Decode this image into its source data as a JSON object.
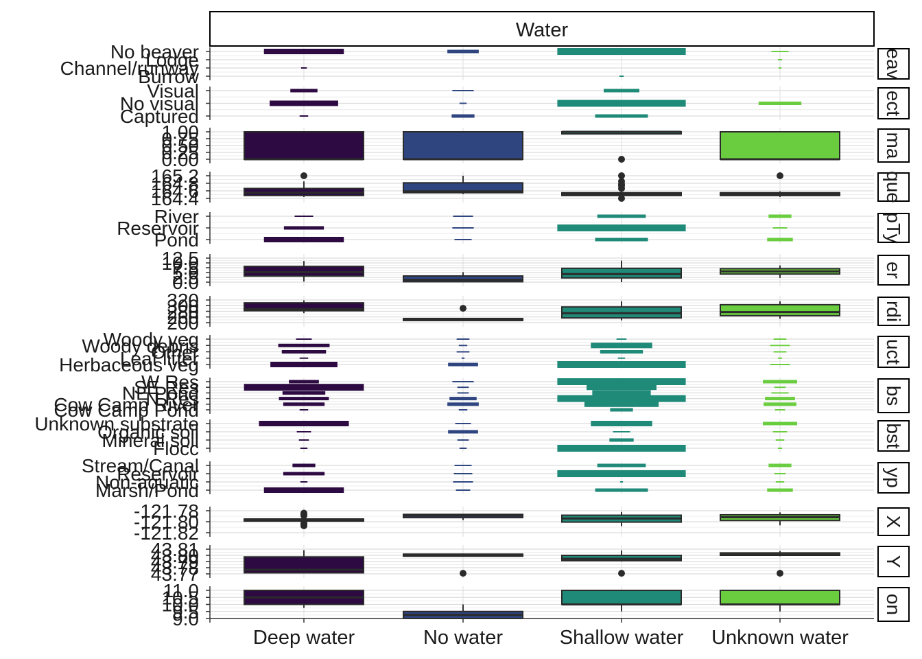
{
  "chart_data": {
    "type": "boxplot-facets",
    "title": "",
    "facet_title": "Water",
    "categories": [
      "Deep water",
      "No water",
      "Shallow water",
      "Unknown water"
    ],
    "category_colors": [
      "#2d0a42",
      "#2f4580",
      "#1f8a78",
      "#6acd3f"
    ],
    "panels": [
      {
        "strip": "eav",
        "kind": "factor",
        "levels": [
          "No beaver",
          "Lodge",
          "Channel/runway",
          "Burrow"
        ],
        "widths": [
          [
            0.56,
            0,
            0.04,
            0
          ],
          [
            0.22,
            0,
            0,
            0
          ],
          [
            0.9,
            0,
            0,
            0.03
          ],
          [
            0.12,
            0.03,
            0.02,
            0
          ]
        ]
      },
      {
        "strip": "ect",
        "kind": "factor",
        "levels": [
          "Visual",
          "No visual",
          "Captured"
        ],
        "widths": [
          [
            0.19,
            0.48,
            0.06
          ],
          [
            0.15,
            0.05,
            0.16
          ],
          [
            0.25,
            0.9,
            0.37
          ],
          [
            0,
            0.3,
            0
          ]
        ]
      },
      {
        "strip": "ma",
        "kind": "numeric",
        "ticks": [
          "1.00",
          "0.75",
          "0.50",
          "0.25",
          "0.00"
        ],
        "ylim": [
          0,
          1
        ],
        "boxes": [
          {
            "q1": 0,
            "median": 0,
            "q3": 1,
            "lo": 0,
            "hi": 1,
            "out": []
          },
          {
            "q1": 0,
            "median": 0,
            "q3": 1,
            "lo": 0,
            "hi": 1,
            "out": []
          },
          {
            "q1": 1,
            "median": 1,
            "q3": 1,
            "lo": 1,
            "hi": 1,
            "out": [
              0
            ]
          },
          {
            "q1": 0,
            "median": 0,
            "q3": 1,
            "lo": 0,
            "hi": 1,
            "out": []
          }
        ]
      },
      {
        "strip": "que",
        "kind": "numeric",
        "ticks": [
          "165.2",
          "164.8",
          "164.6",
          "164.4"
        ],
        "ylim": [
          164.4,
          165.2
        ],
        "boxes": [
          {
            "q1": 164.5,
            "median": 164.6,
            "q3": 164.75,
            "lo": 164.45,
            "hi": 165.0,
            "out": [
              165.2
            ]
          },
          {
            "q1": 164.6,
            "median": 164.65,
            "q3": 164.95,
            "lo": 164.55,
            "hi": 165.2,
            "out": []
          },
          {
            "q1": 164.5,
            "median": 164.55,
            "q3": 164.6,
            "lo": 164.4,
            "hi": 164.7,
            "out": [
              164.4,
              164.75,
              164.85,
              164.9,
              165.0,
              165.2
            ]
          },
          {
            "q1": 164.5,
            "median": 164.55,
            "q3": 164.6,
            "lo": 164.45,
            "hi": 164.65,
            "out": [
              165.2
            ]
          }
        ]
      },
      {
        "strip": "pTy",
        "kind": "factor",
        "levels": [
          "River",
          "Reservoir",
          "Pond"
        ],
        "widths": [
          [
            0.13,
            0.28,
            0.56
          ],
          [
            0.14,
            0.15,
            0.12
          ],
          [
            0.34,
            0.9,
            0.37
          ],
          [
            0.16,
            0.1,
            0.18
          ]
        ]
      },
      {
        "strip": "er",
        "kind": "numeric",
        "ticks": [
          "12.5",
          "10.0",
          "7.5",
          "5.0",
          "2.5",
          "0.0"
        ],
        "ylim": [
          0,
          12.5
        ],
        "boxes": [
          {
            "q1": 3.2,
            "median": 5.2,
            "q3": 8.2,
            "lo": 0.3,
            "hi": 11.0,
            "out": []
          },
          {
            "q1": 0.2,
            "median": 1.2,
            "q3": 3.2,
            "lo": 0.0,
            "hi": 5.2,
            "out": []
          },
          {
            "q1": 2.2,
            "median": 4.2,
            "q3": 7.2,
            "lo": 0.0,
            "hi": 11.2,
            "out": []
          },
          {
            "q1": 4.2,
            "median": 5.6,
            "q3": 7.0,
            "lo": 2.2,
            "hi": 8.7,
            "out": []
          }
        ]
      },
      {
        "strip": "rdi",
        "kind": "numeric",
        "ticks": [
          "320",
          "300",
          "280",
          "260",
          "200"
        ],
        "ylim": [
          200,
          320
        ],
        "boxes": [
          {
            "q1": 263,
            "median": 272,
            "q3": 305,
            "lo": 250,
            "hi": 318,
            "out": []
          },
          {
            "q1": 213,
            "median": 216,
            "q3": 222,
            "lo": 210,
            "hi": 225,
            "out": [
              276
            ]
          },
          {
            "q1": 225,
            "median": 250,
            "q3": 283,
            "lo": 212,
            "hi": 313,
            "out": []
          },
          {
            "q1": 237,
            "median": 256,
            "q3": 295,
            "lo": 220,
            "hi": 313,
            "out": []
          }
        ]
      },
      {
        "strip": "uct",
        "kind": "factor",
        "levels": [
          "Woody veg",
          "Woody debris",
          "Other",
          "Leaf litter",
          "Herbaceous veg"
        ],
        "widths": [
          [
            0.11,
            0.36,
            0.31,
            0.06,
            0.47
          ],
          [
            0.09,
            0.06,
            0.09,
            0.02,
            0.21
          ],
          [
            0.07,
            0.43,
            0.3,
            0.05,
            0.9
          ],
          [
            0.09,
            0.14,
            0.09,
            0.03,
            0.14
          ]
        ]
      },
      {
        "strip": "bs",
        "kind": "factor",
        "levels": [
          "W Res",
          "SE Res",
          "NE Pond",
          "N Res",
          "Cow Camp River",
          "Cow Camp Pond"
        ],
        "widths": [
          [
            0.21,
            0.84,
            0.3,
            0.35,
            0.29,
            0.06
          ],
          [
            0.15,
            0.08,
            0.08,
            0.19,
            0.22,
            0.06
          ],
          [
            0.9,
            0.49,
            0.41,
            0.9,
            0.52,
            0.16
          ],
          [
            0.24,
            0.08,
            0.12,
            0.21,
            0.23,
            0.07
          ]
        ]
      },
      {
        "strip": "bst",
        "kind": "factor",
        "levels": [
          "Unknown substrate",
          "Organic soil",
          "Mineral soil",
          "Flocc"
        ],
        "widths": [
          [
            0.63,
            0.1,
            0.07,
            0.05
          ],
          [
            0.11,
            0.21,
            0.08,
            0.05
          ],
          [
            0.43,
            0.12,
            0.17,
            0.9
          ],
          [
            0.24,
            0.1,
            0.06,
            0.03
          ]
        ]
      },
      {
        "strip": "yp",
        "kind": "factor",
        "levels": [
          "Stream/Canal",
          "Reservoir",
          "Non-aquatic",
          "Marsh/Pond"
        ],
        "widths": [
          [
            0.16,
            0.29,
            0.05,
            0.56
          ],
          [
            0.12,
            0.13,
            0.14,
            0.1
          ],
          [
            0.34,
            0.9,
            0.02,
            0.37
          ],
          [
            0.16,
            0.08,
            0.06,
            0.18
          ]
        ]
      },
      {
        "strip": "X",
        "kind": "numeric",
        "ticks": [
          "-121.78",
          "-121.80",
          "-121.82"
        ],
        "ylim": [
          -121.826,
          -121.772
        ],
        "boxes": [
          {
            "q1": -121.7935,
            "median": -121.793,
            "q3": -121.7925,
            "lo": -121.7935,
            "hi": -121.7925,
            "out": [
              -121.778,
              -121.781,
              -121.784,
              -121.803,
              -121.806,
              -121.809
            ]
          },
          {
            "q1": -121.789,
            "median": -121.784,
            "q3": -121.781,
            "lo": -121.795,
            "hi": -121.781,
            "out": []
          },
          {
            "q1": -121.8,
            "median": -121.791,
            "q3": -121.783,
            "lo": -121.81,
            "hi": -121.775,
            "out": []
          },
          {
            "q1": -121.796,
            "median": -121.788,
            "q3": -121.782,
            "lo": -121.808,
            "hi": -121.776,
            "out": []
          }
        ]
      },
      {
        "strip": "Y",
        "kind": "numeric",
        "ticks": [
          "43.81",
          "43.80",
          "43.79",
          "43.78",
          "43.77"
        ],
        "ylim": [
          43.77,
          43.81
        ],
        "boxes": [
          {
            "q1": 43.7717,
            "median": 43.7766,
            "q3": 43.7975,
            "lo": 43.771,
            "hi": 43.8085,
            "out": []
          },
          {
            "q1": 43.8,
            "median": 43.801,
            "q3": 43.802,
            "lo": 43.7995,
            "hi": 43.803,
            "out": [
              43.771
            ]
          },
          {
            "q1": 43.7915,
            "median": 43.7945,
            "q3": 43.8,
            "lo": 43.79,
            "hi": 43.808,
            "out": [
              43.771
            ]
          },
          {
            "q1": 43.8,
            "median": 43.8013,
            "q3": 43.804,
            "lo": 43.7985,
            "hi": 43.807,
            "out": [
              43.771
            ]
          }
        ]
      },
      {
        "strip": "on",
        "kind": "numeric",
        "ticks": [
          "11.0",
          "10.5",
          "10.0",
          "9.5",
          "9.0"
        ],
        "ylim": [
          9.0,
          11.0
        ],
        "boxes": [
          {
            "q1": 10.0,
            "median": 10.5,
            "q3": 11.0,
            "lo": 9.75,
            "hi": 11.0,
            "out": []
          },
          {
            "q1": 9.0,
            "median": 9.25,
            "q3": 9.5,
            "lo": 9.0,
            "hi": 10.0,
            "out": []
          },
          {
            "q1": 10.0,
            "median": 10.0,
            "q3": 11.0,
            "lo": 9.5,
            "hi": 11.0,
            "out": []
          },
          {
            "q1": 10.0,
            "median": 10.0,
            "q3": 11.0,
            "lo": 9.5,
            "hi": 11.0,
            "out": []
          }
        ]
      }
    ]
  }
}
